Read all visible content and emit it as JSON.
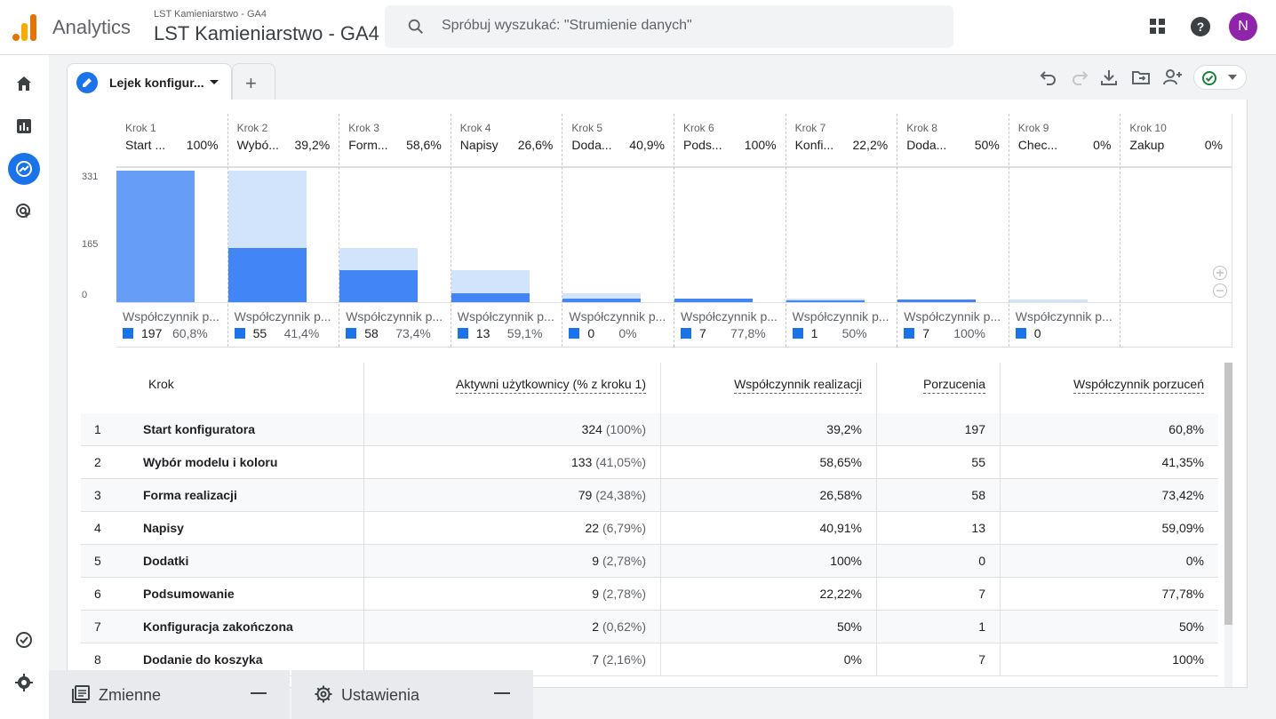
{
  "header": {
    "app_name": "Analytics",
    "property_small": "LST Kamieniarstwo - GA4",
    "property_big": "LST Kamieniarstwo - GA4",
    "search_placeholder": "Spróbuj wyszukać: \"Strumienie danych\"",
    "avatar_letter": "N"
  },
  "tabs": [
    {
      "label": "Lejek konfigur..."
    },
    {
      "label": "+"
    }
  ],
  "funnel": {
    "y_ticks": [
      "331",
      "165",
      "0"
    ],
    "abandon_label": "Współczynnik p...",
    "steps": [
      {
        "num": "Krok 1",
        "name": "Start ...",
        "pct": "100%",
        "value": 324,
        "ab_n": "197",
        "ab_p": "60,8%"
      },
      {
        "num": "Krok 2",
        "name": "Wybó...",
        "pct": "39,2%",
        "value": 133,
        "ab_n": "55",
        "ab_p": "41,4%"
      },
      {
        "num": "Krok 3",
        "name": "Form...",
        "pct": "58,6%",
        "value": 79,
        "ab_n": "58",
        "ab_p": "73,4%"
      },
      {
        "num": "Krok 4",
        "name": "Napisy",
        "pct": "26,6%",
        "value": 22,
        "ab_n": "13",
        "ab_p": "59,1%"
      },
      {
        "num": "Krok 5",
        "name": "Doda...",
        "pct": "40,9%",
        "value": 9,
        "ab_n": "0",
        "ab_p": "0%"
      },
      {
        "num": "Krok 6",
        "name": "Pods...",
        "pct": "100%",
        "value": 9,
        "ab_n": "7",
        "ab_p": "77,8%"
      },
      {
        "num": "Krok 7",
        "name": "Konfi...",
        "pct": "22,2%",
        "value": 2,
        "ab_n": "1",
        "ab_p": "50%"
      },
      {
        "num": "Krok 8",
        "name": "Doda...",
        "pct": "50%",
        "value": 7,
        "ab_n": "7",
        "ab_p": "100%"
      },
      {
        "num": "Krok 9",
        "name": "Chec...",
        "pct": "0%",
        "value": 0,
        "ab_n": "0",
        "ab_p": ""
      },
      {
        "num": "Krok 10",
        "name": "Zakup",
        "pct": "0%",
        "value": 0,
        "ab_n": "",
        "ab_p": ""
      }
    ]
  },
  "chart_data": {
    "type": "bar",
    "categories": [
      "Krok 1",
      "Krok 2",
      "Krok 3",
      "Krok 4",
      "Krok 5",
      "Krok 6",
      "Krok 7",
      "Krok 8",
      "Krok 9",
      "Krok 10"
    ],
    "values": [
      324,
      133,
      79,
      22,
      9,
      9,
      2,
      7,
      0,
      0
    ],
    "ylim": [
      0,
      331
    ],
    "yticks": [
      0,
      165,
      331
    ]
  },
  "table": {
    "headers": [
      "Krok",
      "Aktywni użytkownicy (% z kroku 1)",
      "Współczynnik realizacji",
      "Porzucenia",
      "Współczynnik porzuceń"
    ],
    "rows": [
      {
        "n": "1",
        "name": "Start konfiguratora",
        "users": "324",
        "users_pct": "(100%)",
        "rate": "39,2%",
        "drop": "197",
        "drop_rate": "60,8%"
      },
      {
        "n": "2",
        "name": "Wybór modelu i koloru",
        "users": "133",
        "users_pct": "(41,05%)",
        "rate": "58,65%",
        "drop": "55",
        "drop_rate": "41,35%"
      },
      {
        "n": "3",
        "name": "Forma realizacji",
        "users": "79",
        "users_pct": "(24,38%)",
        "rate": "26,58%",
        "drop": "58",
        "drop_rate": "73,42%"
      },
      {
        "n": "4",
        "name": "Napisy",
        "users": "22",
        "users_pct": "(6,79%)",
        "rate": "40,91%",
        "drop": "13",
        "drop_rate": "59,09%"
      },
      {
        "n": "5",
        "name": "Dodatki",
        "users": "9",
        "users_pct": "(2,78%)",
        "rate": "100%",
        "drop": "0",
        "drop_rate": "0%"
      },
      {
        "n": "6",
        "name": "Podsumowanie",
        "users": "9",
        "users_pct": "(2,78%)",
        "rate": "22,22%",
        "drop": "7",
        "drop_rate": "77,78%"
      },
      {
        "n": "7",
        "name": "Konfiguracja zakończona",
        "users": "2",
        "users_pct": "(0,62%)",
        "rate": "50%",
        "drop": "1",
        "drop_rate": "50%"
      },
      {
        "n": "8",
        "name": "Dodanie do koszyka",
        "users": "7",
        "users_pct": "(2,16%)",
        "rate": "0%",
        "drop": "7",
        "drop_rate": "100%"
      }
    ]
  },
  "bottom_panels": [
    {
      "label": "Zmienne"
    },
    {
      "label": "Ustawienia"
    }
  ]
}
